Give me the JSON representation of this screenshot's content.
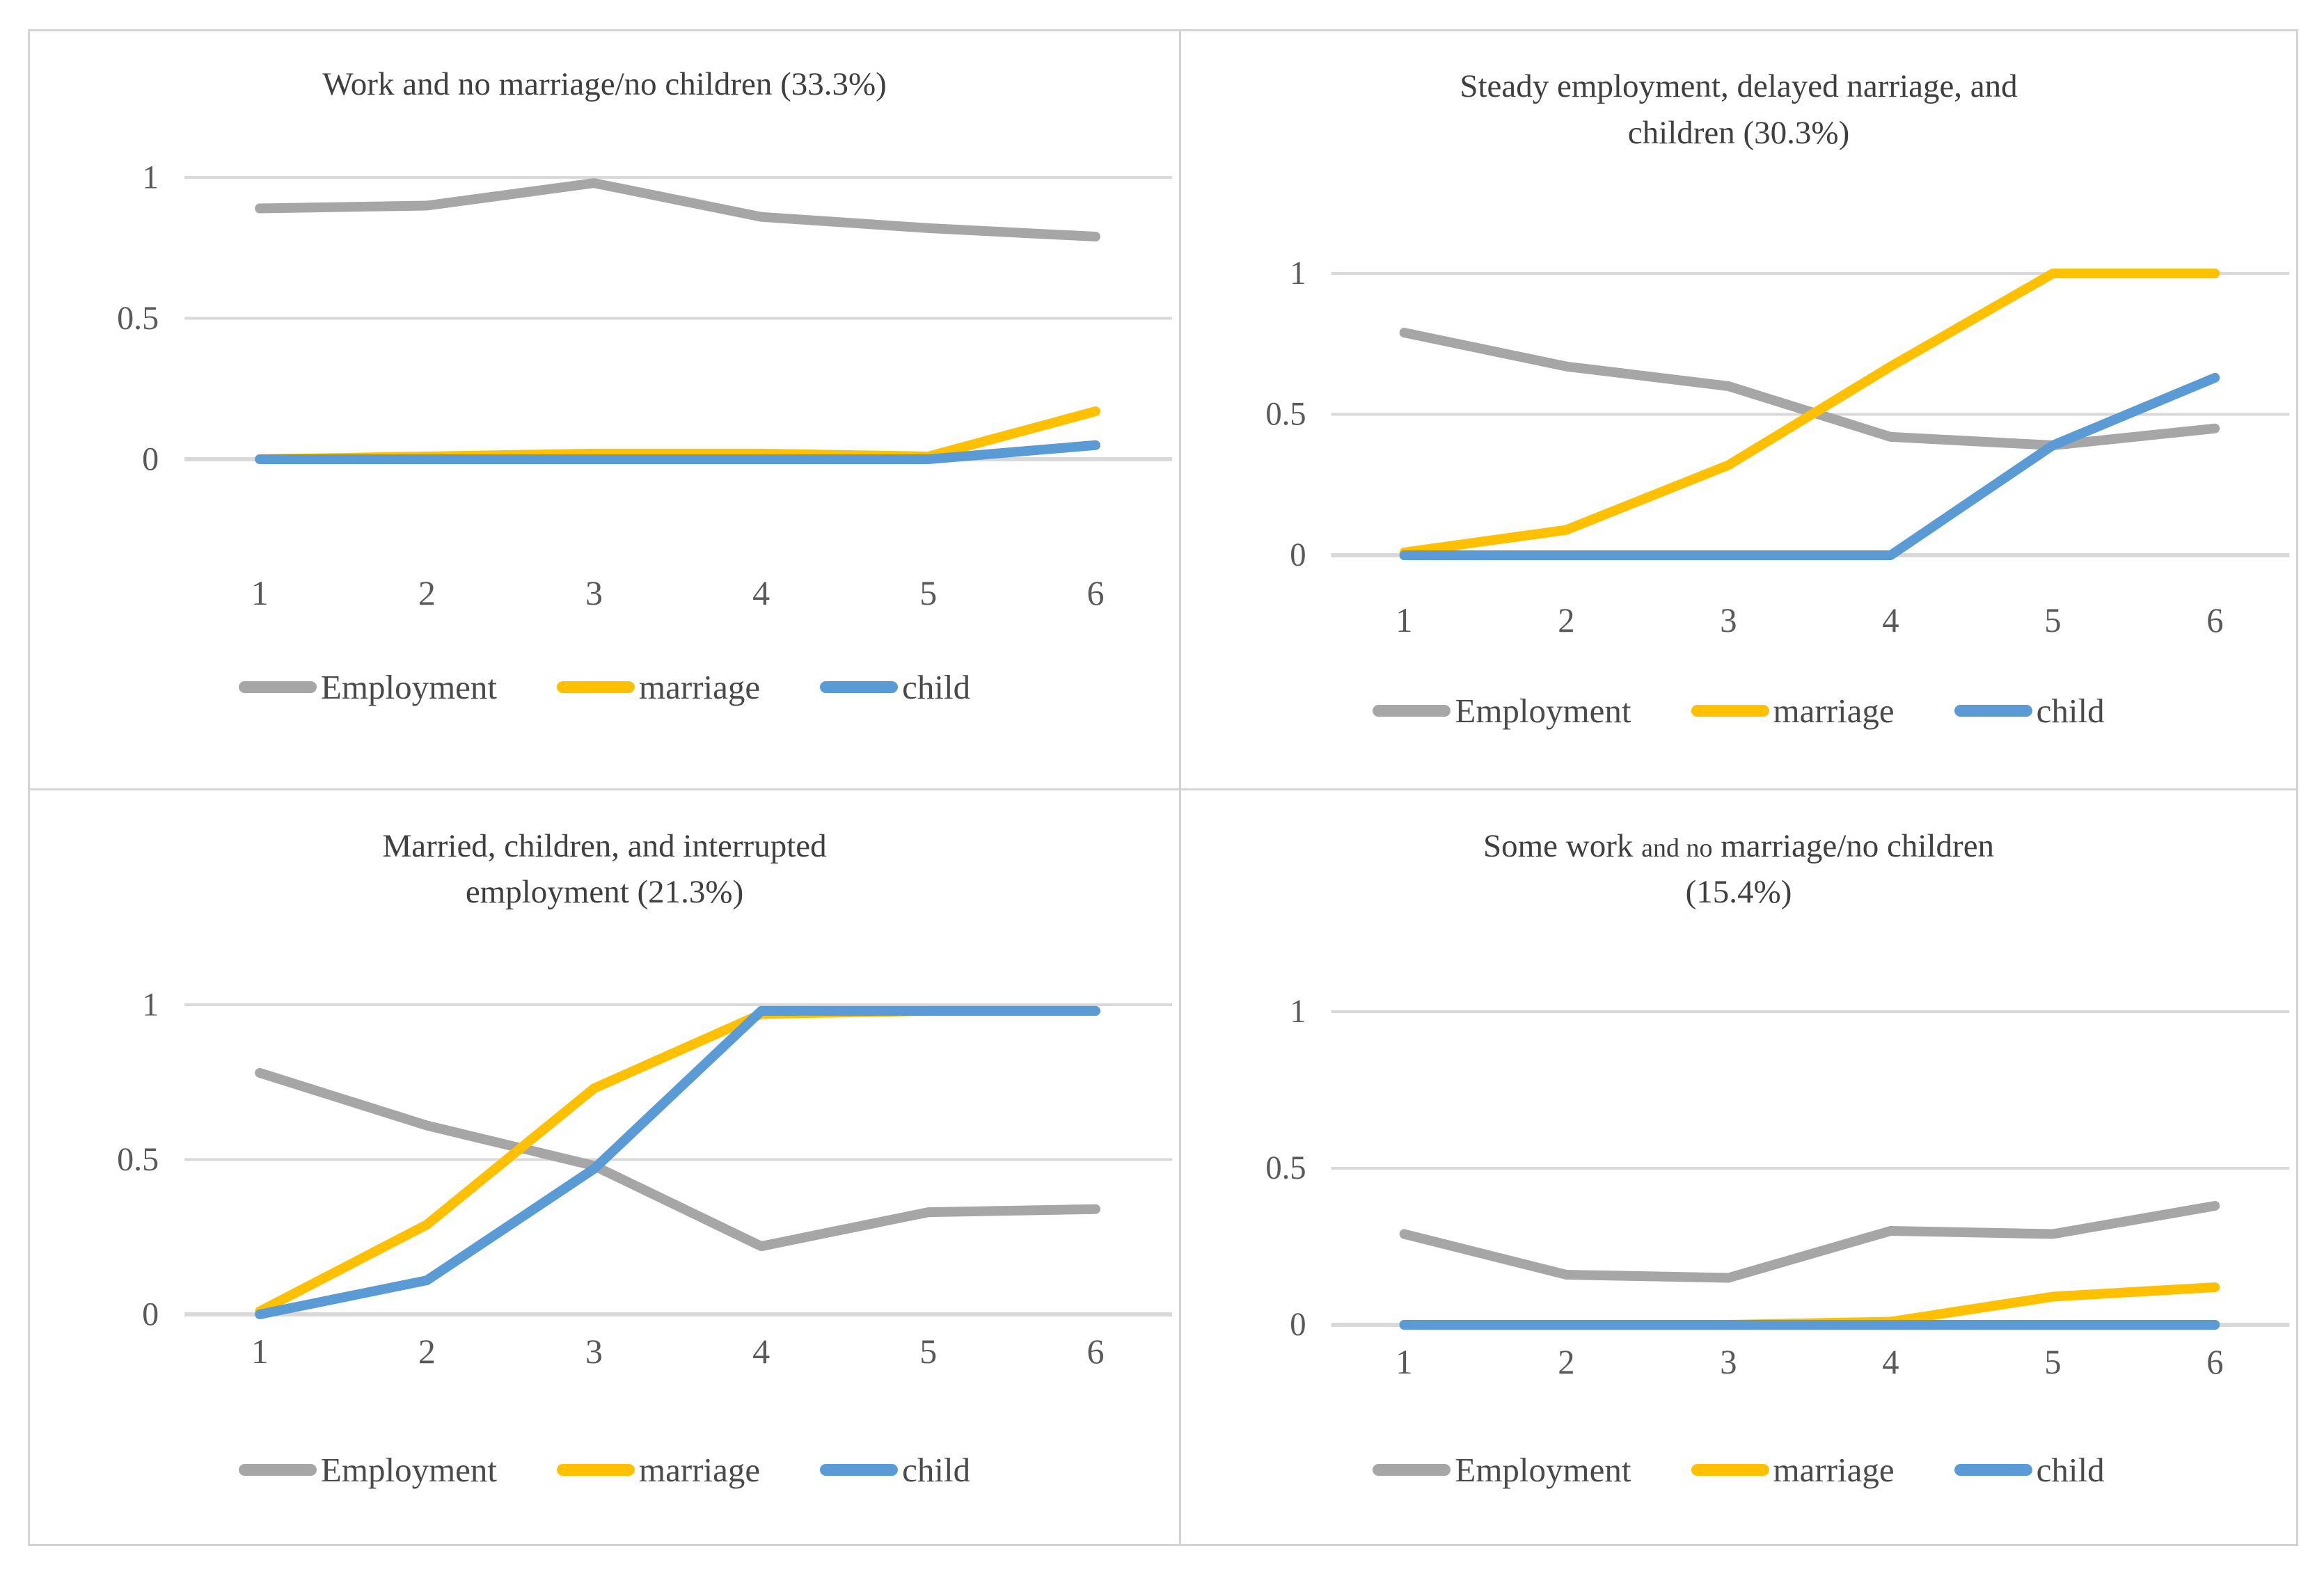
{
  "figure_title": "Four latent class trajectory charts of employment, marriage and child status",
  "colors": {
    "employment": "#A6A6A6",
    "marriage": "#FFC000",
    "child": "#5B9BD5",
    "gridline": "#D9D9D9",
    "axis_line": "#D0D0D0",
    "tick_text": "#595959",
    "title_text": "#3F3F3F",
    "panel_border": "#D4D4D4"
  },
  "legend": {
    "position": "bottom",
    "labels": [
      "Employment",
      "marriage",
      "child"
    ]
  },
  "chart_data": [
    {
      "type": "line",
      "title": "Work and no marriage/no children (33.3%)",
      "title_lines": [
        [
          {
            "text": "Work and no marriage/no children (33.3%)",
            "small": false
          }
        ]
      ],
      "x": [
        "1",
        "2",
        "3",
        "4",
        "5",
        "6"
      ],
      "xlabel": "",
      "ylabel": "",
      "ylim": [
        0,
        1
      ],
      "yticks": [
        {
          "value": 1,
          "label": "1"
        },
        {
          "value": 0.5,
          "label": "0.5"
        },
        {
          "value": 0,
          "label": "0"
        }
      ],
      "grid": "horizontal",
      "legend_position": "bottom",
      "series": [
        {
          "name": "Employment",
          "color": "#A6A6A6",
          "values": [
            0.89,
            0.9,
            0.98,
            0.86,
            0.82,
            0.79
          ]
        },
        {
          "name": "marriage",
          "color": "#FFC000",
          "values": [
            0.0,
            0.01,
            0.02,
            0.02,
            0.01,
            0.17
          ]
        },
        {
          "name": "child",
          "color": "#5B9BD5",
          "values": [
            0.0,
            0.0,
            0.0,
            0.0,
            0.0,
            0.05
          ]
        }
      ]
    },
    {
      "type": "line",
      "title": "Steady employment, delayed narriage, and children (30.3%)",
      "title_lines": [
        [
          {
            "text": "Steady employment, delayed narriage, and",
            "small": false
          }
        ],
        [
          {
            "text": "children (30.3%)",
            "small": false
          }
        ]
      ],
      "x": [
        "1",
        "2",
        "3",
        "4",
        "5",
        "6"
      ],
      "xlabel": "",
      "ylabel": "",
      "ylim": [
        0,
        1
      ],
      "yticks": [
        {
          "value": 1,
          "label": "1"
        },
        {
          "value": 0.5,
          "label": "0.5"
        },
        {
          "value": 0,
          "label": "0"
        }
      ],
      "grid": "horizontal",
      "legend_position": "bottom",
      "series": [
        {
          "name": "Employment",
          "color": "#A6A6A6",
          "values": [
            0.79,
            0.67,
            0.6,
            0.42,
            0.39,
            0.45
          ]
        },
        {
          "name": "marriage",
          "color": "#FFC000",
          "values": [
            0.01,
            0.09,
            0.32,
            0.67,
            1.0,
            1.0
          ]
        },
        {
          "name": "child",
          "color": "#5B9BD5",
          "values": [
            0.0,
            0.0,
            0.0,
            0.0,
            0.39,
            0.63
          ]
        }
      ]
    },
    {
      "type": "line",
      "title": "Married, children, and interrupted employment (21.3%)",
      "title_lines": [
        [
          {
            "text": "Married, children, and interrupted",
            "small": false
          }
        ],
        [
          {
            "text": "employment (21.3%)",
            "small": false
          }
        ]
      ],
      "x": [
        "1",
        "2",
        "3",
        "4",
        "5",
        "6"
      ],
      "xlabel": "",
      "ylabel": "",
      "ylim": [
        0,
        1
      ],
      "yticks": [
        {
          "value": 1,
          "label": "1"
        },
        {
          "value": 0.5,
          "label": "0.5"
        },
        {
          "value": 0,
          "label": "0"
        }
      ],
      "grid": "horizontal",
      "legend_position": "bottom",
      "series": [
        {
          "name": "Employment",
          "color": "#A6A6A6",
          "values": [
            0.78,
            0.61,
            0.48,
            0.22,
            0.33,
            0.34
          ]
        },
        {
          "name": "marriage",
          "color": "#FFC000",
          "values": [
            0.01,
            0.29,
            0.73,
            0.97,
            0.98,
            0.98
          ]
        },
        {
          "name": "child",
          "color": "#5B9BD5",
          "values": [
            0.0,
            0.11,
            0.47,
            0.98,
            0.98,
            0.98
          ]
        }
      ]
    },
    {
      "type": "line",
      "title": "Some work and no marriage/no children (15.4%)",
      "title_lines": [
        [
          {
            "text": "Some work ",
            "small": false
          },
          {
            "text": "and no",
            "small": true
          },
          {
            "text": " marriage/no children",
            "small": false
          }
        ],
        [
          {
            "text": "(15.4%)",
            "small": false
          }
        ]
      ],
      "x": [
        "1",
        "2",
        "3",
        "4",
        "5",
        "6"
      ],
      "xlabel": "",
      "ylabel": "",
      "ylim": [
        0,
        1
      ],
      "yticks": [
        {
          "value": 1,
          "label": "1"
        },
        {
          "value": 0.5,
          "label": "0.5"
        },
        {
          "value": 0,
          "label": "0"
        }
      ],
      "grid": "horizontal",
      "legend_position": "bottom",
      "series": [
        {
          "name": "Employment",
          "color": "#A6A6A6",
          "values": [
            0.29,
            0.16,
            0.15,
            0.3,
            0.29,
            0.38
          ]
        },
        {
          "name": "marriage",
          "color": "#FFC000",
          "values": [
            0.0,
            0.0,
            0.0,
            0.01,
            0.09,
            0.12
          ]
        },
        {
          "name": "child",
          "color": "#5B9BD5",
          "values": [
            0.0,
            0.0,
            0.0,
            0.0,
            0.0,
            0.0
          ]
        }
      ]
    }
  ]
}
